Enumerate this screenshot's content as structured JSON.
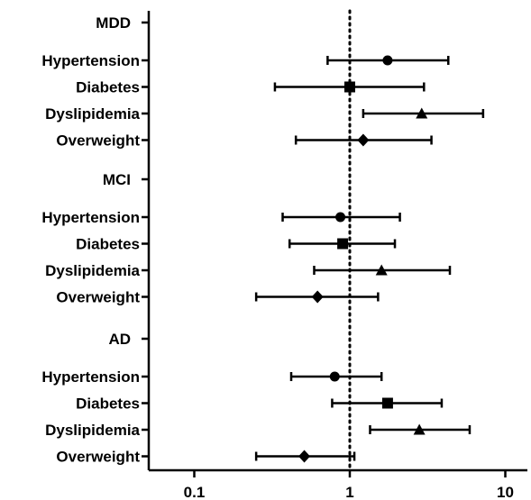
{
  "chart_data": {
    "type": "forest",
    "x_scale": "log10",
    "xlim": [
      0.038,
      16
    ],
    "x_ticks": [
      0.1,
      1,
      10
    ],
    "x_tick_labels": [
      "0.1",
      "1",
      "10"
    ],
    "reference_line": 1,
    "marker_color": "#000000",
    "groups": [
      {
        "name": "MDD",
        "rows": [
          {
            "label": "Hypertension",
            "marker": "circle",
            "estimate": 1.75,
            "lower": 0.72,
            "upper": 4.3
          },
          {
            "label": "Diabetes",
            "marker": "square",
            "estimate": 1.0,
            "lower": 0.33,
            "upper": 3.0
          },
          {
            "label": "Dyslipidemia",
            "marker": "triangle",
            "estimate": 2.9,
            "lower": 1.22,
            "upper": 7.2
          },
          {
            "label": "Overweight",
            "marker": "diamond",
            "estimate": 1.22,
            "lower": 0.45,
            "upper": 3.35
          }
        ]
      },
      {
        "name": "MCI",
        "rows": [
          {
            "label": "Hypertension",
            "marker": "circle",
            "estimate": 0.87,
            "lower": 0.37,
            "upper": 2.1
          },
          {
            "label": "Diabetes",
            "marker": "square",
            "estimate": 0.9,
            "lower": 0.41,
            "upper": 1.95
          },
          {
            "label": "Dyslipidemia",
            "marker": "triangle",
            "estimate": 1.6,
            "lower": 0.59,
            "upper": 4.4
          },
          {
            "label": "Overweight",
            "marker": "diamond",
            "estimate": 0.62,
            "lower": 0.25,
            "upper": 1.52
          }
        ]
      },
      {
        "name": "AD",
        "rows": [
          {
            "label": "Hypertension",
            "marker": "circle",
            "estimate": 0.8,
            "lower": 0.42,
            "upper": 1.6
          },
          {
            "label": "Diabetes",
            "marker": "square",
            "estimate": 1.75,
            "lower": 0.77,
            "upper": 3.9
          },
          {
            "label": "Dyslipidemia",
            "marker": "triangle",
            "estimate": 2.8,
            "lower": 1.35,
            "upper": 5.9
          },
          {
            "label": "Overweight",
            "marker": "diamond",
            "estimate": 0.51,
            "lower": 0.25,
            "upper": 1.07
          }
        ]
      }
    ]
  }
}
